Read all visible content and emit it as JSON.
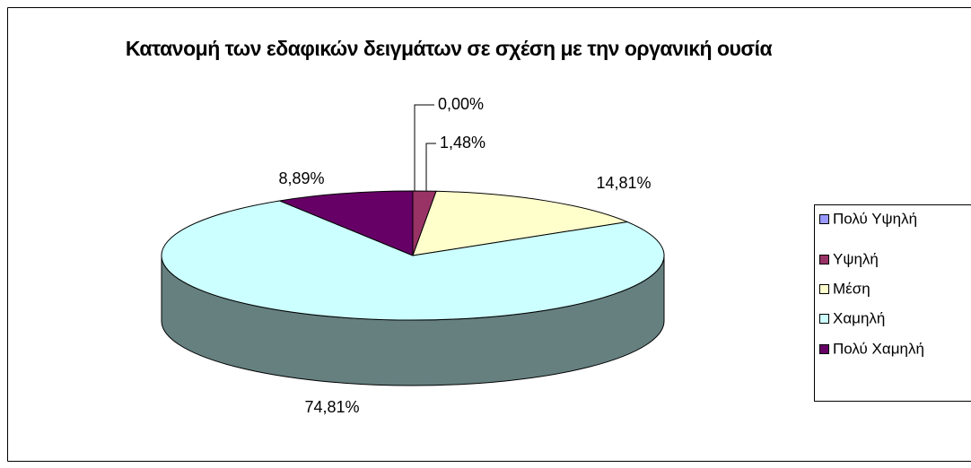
{
  "chart_data": {
    "type": "pie",
    "title": "Κατανομή των εδαφικών δειγμάτων σε σχέση με την οργανική ουσία",
    "categories": [
      "Πολύ Υψηλή",
      "Υψηλή",
      "Μέση",
      "Χαμηλή",
      "Πολύ Χαμηλή"
    ],
    "values": [
      0,
      1.48,
      14.81,
      74.81,
      8.89
    ],
    "value_labels": [
      "0,00%",
      "1,48%",
      "14,81%",
      "74,81%",
      "8,89%"
    ],
    "colors": [
      "#9999ff",
      "#993366",
      "#ffffcc",
      "#ccffff",
      "#660066"
    ],
    "legend": "right"
  }
}
